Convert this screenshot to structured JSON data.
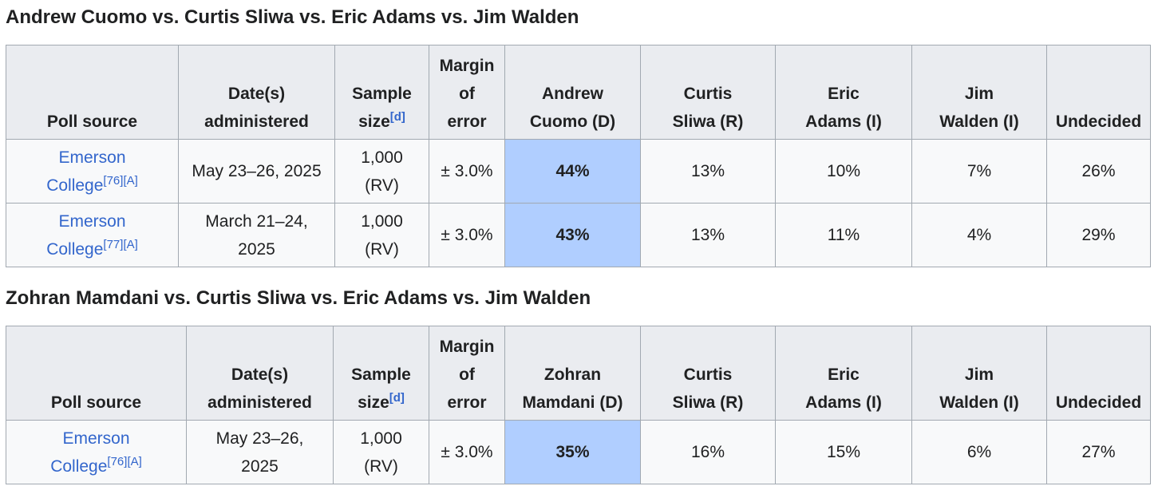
{
  "tables": [
    {
      "heading": "Andrew Cuomo vs. Curtis Sliwa vs. Eric Adams vs. Jim Walden",
      "headers": {
        "poll_source": "Poll source",
        "dates_line1": "Date(s)",
        "dates_line2": "administered",
        "sample_line1": "Sample",
        "sample_line2": "size",
        "sample_note": "[d]",
        "moe_line1": "Margin",
        "moe_line2": "of",
        "moe_line3": "error",
        "c1_line1": "Andrew",
        "c1_line2": "Cuomo (D)",
        "c2_line1": "Curtis",
        "c2_line2": "Sliwa (R)",
        "c3_line1": "Eric",
        "c3_line2": "Adams (I)",
        "c4_line1": "Jim",
        "c4_line2": "Walden (I)",
        "undecided": "Undecided"
      },
      "rows": [
        {
          "src_line1": "Emerson",
          "src_line2": "College",
          "src_ref": "[76]",
          "src_note": "[A]",
          "date_line1": "May 23–26, 2025",
          "date_line2": "",
          "sample_line1": "1,000",
          "sample_line2": "(RV)",
          "moe": "± 3.0%",
          "c1": "44%",
          "c2": "13%",
          "c3": "10%",
          "c4": "7%",
          "undecided": "26%"
        },
        {
          "src_line1": "Emerson",
          "src_line2": "College",
          "src_ref": "[77]",
          "src_note": "[A]",
          "date_line1": "March 21–24,",
          "date_line2": "2025",
          "sample_line1": "1,000",
          "sample_line2": "(RV)",
          "moe": "± 3.0%",
          "c1": "43%",
          "c2": "13%",
          "c3": "11%",
          "c4": "4%",
          "undecided": "29%"
        }
      ]
    },
    {
      "heading": "Zohran Mamdani vs. Curtis Sliwa vs. Eric Adams vs. Jim Walden",
      "headers": {
        "poll_source": "Poll source",
        "dates_line1": "Date(s)",
        "dates_line2": "administered",
        "sample_line1": "Sample",
        "sample_line2": "size",
        "sample_note": "[d]",
        "moe_line1": "Margin",
        "moe_line2": "of",
        "moe_line3": "error",
        "c1_line1": "Zohran",
        "c1_line2": "Mamdani (D)",
        "c2_line1": "Curtis",
        "c2_line2": "Sliwa (R)",
        "c3_line1": "Eric",
        "c3_line2": "Adams (I)",
        "c4_line1": "Jim",
        "c4_line2": "Walden (I)",
        "undecided": "Undecided"
      },
      "rows": [
        {
          "src_line1": "Emerson",
          "src_line2": "College",
          "src_ref": "[76]",
          "src_note": "[A]",
          "date_line1": "May 23–26,",
          "date_line2": "2025",
          "sample_line1": "1,000",
          "sample_line2": "(RV)",
          "moe": "± 3.0%",
          "c1": "35%",
          "c2": "16%",
          "c3": "15%",
          "c4": "6%",
          "undecided": "27%"
        }
      ]
    }
  ],
  "colors": {
    "leader_highlight": "#b0ceff",
    "link": "#3366cc",
    "header_bg": "#eaecf0",
    "cell_bg": "#f8f9fa",
    "border": "#a2a9b1"
  }
}
